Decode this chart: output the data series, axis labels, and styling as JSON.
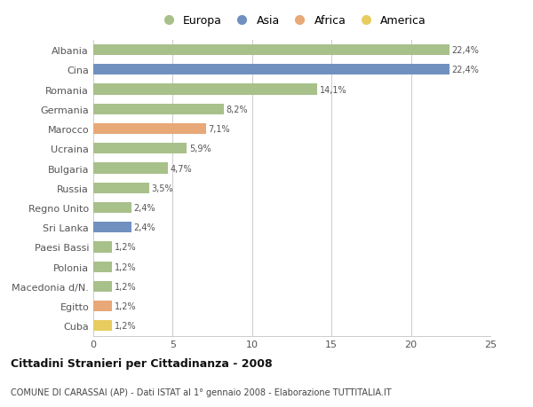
{
  "categories": [
    "Albania",
    "Cina",
    "Romania",
    "Germania",
    "Marocco",
    "Ucraina",
    "Bulgaria",
    "Russia",
    "Regno Unito",
    "Sri Lanka",
    "Paesi Bassi",
    "Polonia",
    "Macedonia d/N.",
    "Egitto",
    "Cuba"
  ],
  "values": [
    22.4,
    22.4,
    14.1,
    8.2,
    7.1,
    5.9,
    4.7,
    3.5,
    2.4,
    2.4,
    1.2,
    1.2,
    1.2,
    1.2,
    1.2
  ],
  "labels": [
    "22,4%",
    "22,4%",
    "14,1%",
    "8,2%",
    "7,1%",
    "5,9%",
    "4,7%",
    "3,5%",
    "2,4%",
    "2,4%",
    "1,2%",
    "1,2%",
    "1,2%",
    "1,2%",
    "1,2%"
  ],
  "colors": [
    "#a8c08a",
    "#7090c0",
    "#a8c08a",
    "#a8c08a",
    "#e8a878",
    "#a8c08a",
    "#a8c08a",
    "#a8c08a",
    "#a8c08a",
    "#7090c0",
    "#a8c08a",
    "#a8c08a",
    "#a8c08a",
    "#e8a878",
    "#e8cc60"
  ],
  "legend_labels": [
    "Europa",
    "Asia",
    "Africa",
    "America"
  ],
  "legend_colors": [
    "#a8c08a",
    "#7090c0",
    "#e8a878",
    "#e8cc60"
  ],
  "title": "Cittadini Stranieri per Cittadinanza - 2008",
  "subtitle": "COMUNE DI CARASSAI (AP) - Dati ISTAT al 1° gennaio 2008 - Elaborazione TUTTITALIA.IT",
  "xlim": [
    0,
    25
  ],
  "xticks": [
    0,
    5,
    10,
    15,
    20,
    25
  ],
  "background_color": "#ffffff",
  "grid_color": "#cccccc",
  "bar_height": 0.55
}
